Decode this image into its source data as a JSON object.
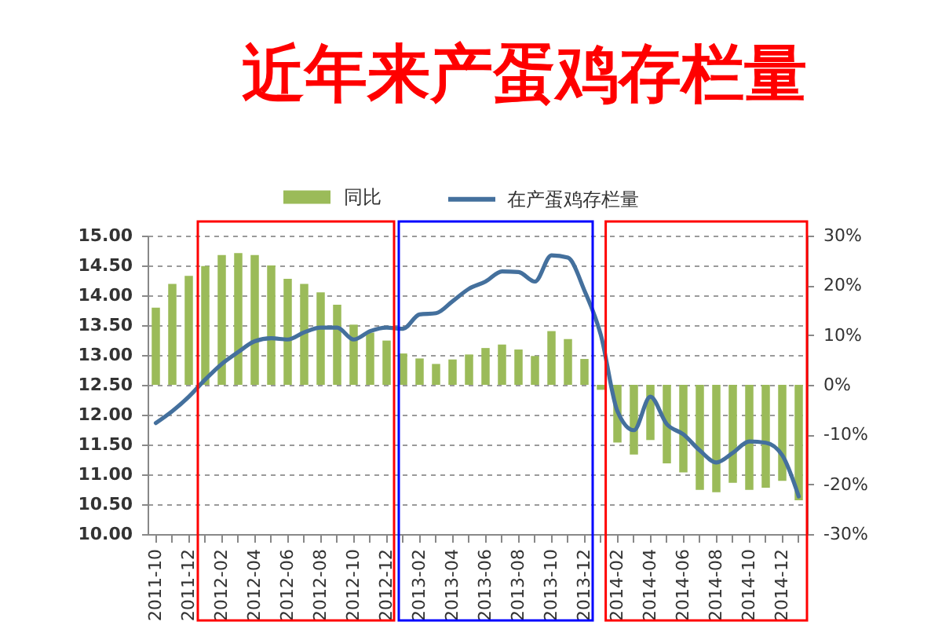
{
  "chart_data": {
    "type": "bar",
    "title": "近年来产蛋鸡存栏量",
    "categories": [
      "2011-10",
      null,
      "2011-12",
      null,
      "2012-02",
      null,
      "2012-04",
      null,
      "2012-06",
      null,
      "2012-08",
      null,
      "2012-10",
      null,
      "2012-12",
      null,
      "2013-02",
      null,
      "2013-04",
      null,
      "2013-06",
      null,
      "2013-08",
      null,
      "2013-10",
      null,
      "2013-12",
      null,
      "2014-02",
      null,
      "2014-04",
      null,
      "2014-06",
      null,
      "2014-08",
      null,
      "2014-10",
      null,
      "2014-12",
      null
    ],
    "series": [
      {
        "name": "同比",
        "axis": "y2",
        "color": "#9bbb59",
        "values": [
          15.5,
          20.3,
          21.9,
          23.9,
          26.1,
          26.5,
          26.1,
          24.0,
          21.3,
          20.3,
          18.6,
          16.1,
          12.1,
          10.5,
          8.9,
          6.3,
          5.3,
          4.2,
          5.1,
          6.1,
          7.4,
          8.1,
          7.1,
          5.8,
          10.8,
          9.2,
          5.2,
          -1.0,
          -11.6,
          -14.0,
          -11.1,
          -15.8,
          -17.6,
          -21.1,
          -21.6,
          -19.7,
          -21.1,
          -20.7,
          -19.3,
          -23.2
        ]
      },
      {
        "name": "在产蛋鸡存栏量",
        "type": "line",
        "color": "#44709d",
        "values": [
          11.86,
          12.06,
          12.3,
          12.59,
          12.85,
          13.05,
          13.23,
          13.28,
          13.26,
          13.38,
          13.46,
          13.46,
          13.26,
          13.4,
          13.46,
          13.44,
          13.68,
          13.7,
          13.9,
          14.11,
          14.23,
          14.4,
          14.39,
          14.23,
          14.67,
          14.63,
          14.08,
          13.33,
          12.06,
          11.74,
          12.3,
          11.84,
          11.67,
          11.4,
          11.2,
          11.36,
          11.55,
          11.53,
          11.32,
          10.63
        ]
      }
    ],
    "ylim": [
      10,
      15
    ],
    "yticks": [
      {
        "value": 10,
        "label": "10.00"
      },
      {
        "value": 10.5,
        "label": "10.50"
      },
      {
        "value": 11,
        "label": "11.00"
      },
      {
        "value": 11.5,
        "label": "11.50"
      },
      {
        "value": 12,
        "label": "12.00"
      },
      {
        "value": 12.5,
        "label": "12.50"
      },
      {
        "value": 13,
        "label": "13.00"
      },
      {
        "value": 13.5,
        "label": "13.50"
      },
      {
        "value": 14,
        "label": "14.00"
      },
      {
        "value": 14.5,
        "label": "14.50"
      },
      {
        "value": 15,
        "label": "15.00"
      }
    ],
    "y2lim": [
      -30,
      30
    ],
    "y2ticks": [
      {
        "value": -30,
        "label": "-30%"
      },
      {
        "value": -20,
        "label": "-20%"
      },
      {
        "value": -10,
        "label": "-10%"
      },
      {
        "value": 0,
        "label": "0%"
      },
      {
        "value": 10,
        "label": "10%"
      },
      {
        "value": 20,
        "label": "20%"
      },
      {
        "value": 30,
        "label": "30%"
      }
    ],
    "grid": "y",
    "legend": "top"
  }
}
